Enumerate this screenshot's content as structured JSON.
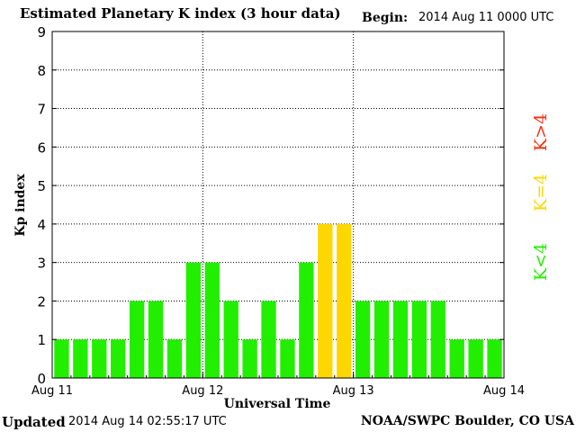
{
  "header": {
    "title": "Estimated Planetary K index (3 hour data)",
    "begin_label": "Begin:",
    "begin_value": "2014 Aug 11 0000 UTC"
  },
  "footer": {
    "updated_label": "Updated",
    "updated_value": "2014 Aug 14 02:55:17 UTC",
    "credit": "NOAA/SWPC Boulder, CO USA"
  },
  "chart_data": {
    "type": "bar",
    "title": "Estimated Planetary K index (3 hour data)",
    "xlabel": "Universal Time",
    "ylabel": "Kp index",
    "ylim": [
      0,
      9
    ],
    "yticks": [
      "0",
      "1",
      "2",
      "3",
      "4",
      "5",
      "6",
      "7",
      "8",
      "9"
    ],
    "xticks": [
      "Aug 11",
      "Aug 12",
      "Aug 13",
      "Aug 14"
    ],
    "grid": true,
    "bar_count": 24,
    "values": [
      1,
      1,
      1,
      1,
      2,
      2,
      1,
      3,
      3,
      2,
      1,
      2,
      1,
      3,
      4,
      4,
      2,
      2,
      2,
      2,
      2,
      1,
      1,
      1
    ],
    "colors": {
      "below_4": "#22ee00",
      "equal_4": "#ffd700",
      "above_4": "#ee3311"
    },
    "legend": [
      "K<4",
      "K=4",
      "K>4"
    ]
  }
}
